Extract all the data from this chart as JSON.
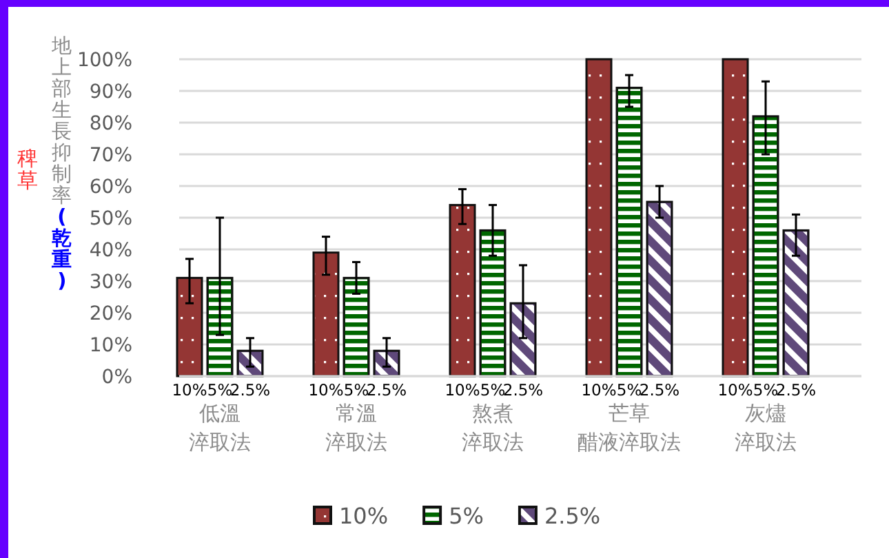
{
  "chart_data": {
    "type": "bar",
    "ylabel": "地上部生長抑制率**(乾重)**",
    "annotations": [
      "稗草"
    ],
    "categories": [
      "低溫淬取法",
      "常溫淬取法",
      "熬煮淬取法",
      "芒草醋液淬取法",
      "灰燼淬取法"
    ],
    "series": [
      {
        "name": "10%",
        "color": "#943634",
        "values": [
          31,
          39,
          54,
          100,
          100
        ],
        "errors": [
          [
            23,
            37
          ],
          [
            32,
            44
          ],
          [
            48,
            59
          ],
          null,
          null
        ]
      },
      {
        "name": "5%",
        "color": "#006600",
        "values": [
          31,
          31,
          46,
          91,
          82
        ],
        "errors": [
          [
            13,
            50
          ],
          [
            26,
            36
          ],
          [
            38,
            54
          ],
          [
            85,
            95
          ],
          [
            70,
            93
          ]
        ]
      },
      {
        "name": "2.5%",
        "color": "#5f497a",
        "values": [
          8,
          8,
          23,
          55,
          46
        ],
        "errors": [
          [
            3,
            12
          ],
          [
            3,
            12
          ],
          [
            12,
            35
          ],
          [
            50,
            60
          ],
          [
            38,
            51
          ]
        ]
      }
    ],
    "ylim": [
      0,
      100
    ],
    "yticks": [
      {
        "value": 0,
        "label": "0%"
      },
      {
        "value": 10,
        "label": "10%"
      },
      {
        "value": 20,
        "label": "20%"
      },
      {
        "value": 30,
        "label": "30%"
      },
      {
        "value": 40,
        "label": "40%"
      },
      {
        "value": 50,
        "label": "50%"
      },
      {
        "value": 60,
        "label": "60%"
      },
      {
        "value": 70,
        "label": "70%"
      },
      {
        "value": 80,
        "label": "80%"
      },
      {
        "value": 90,
        "label": "90%"
      },
      {
        "value": 100,
        "label": "100%"
      }
    ],
    "grid": "y",
    "legend": "bottom"
  }
}
